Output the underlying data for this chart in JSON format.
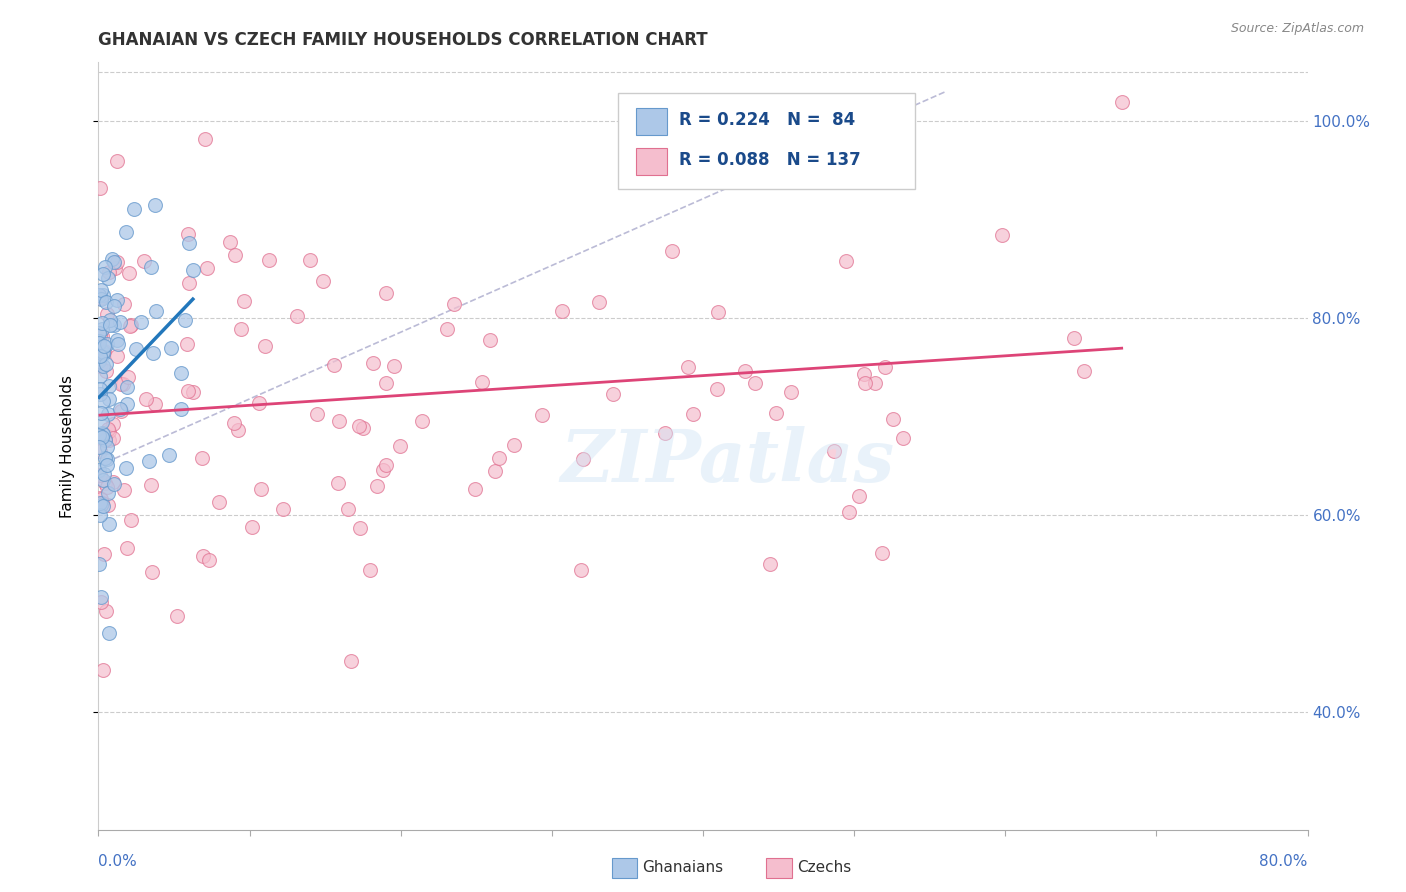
{
  "title": "GHANAIAN VS CZECH FAMILY HOUSEHOLDS CORRELATION CHART",
  "source_text": "Source: ZipAtlas.com",
  "ylabel": "Family Households",
  "xmin": 0.0,
  "xmax": 0.8,
  "ymin": 0.28,
  "ymax": 1.06,
  "yticks": [
    0.4,
    0.6,
    0.8,
    1.0
  ],
  "ytick_labels": [
    "40.0%",
    "60.0%",
    "80.0%",
    "100.0%"
  ],
  "ghanaian_color": "#adc8e8",
  "ghanaian_edge": "#6699cc",
  "czech_color": "#f5bece",
  "czech_edge": "#e07090",
  "trend_ghanaian_color": "#2277bb",
  "trend_czech_color": "#dd4477",
  "R_ghanaian": 0.224,
  "N_ghanaian": 84,
  "R_czech": 0.088,
  "N_czech": 137,
  "watermark": "ZIPatlas",
  "seed_gh": 99,
  "seed_cz": 77
}
